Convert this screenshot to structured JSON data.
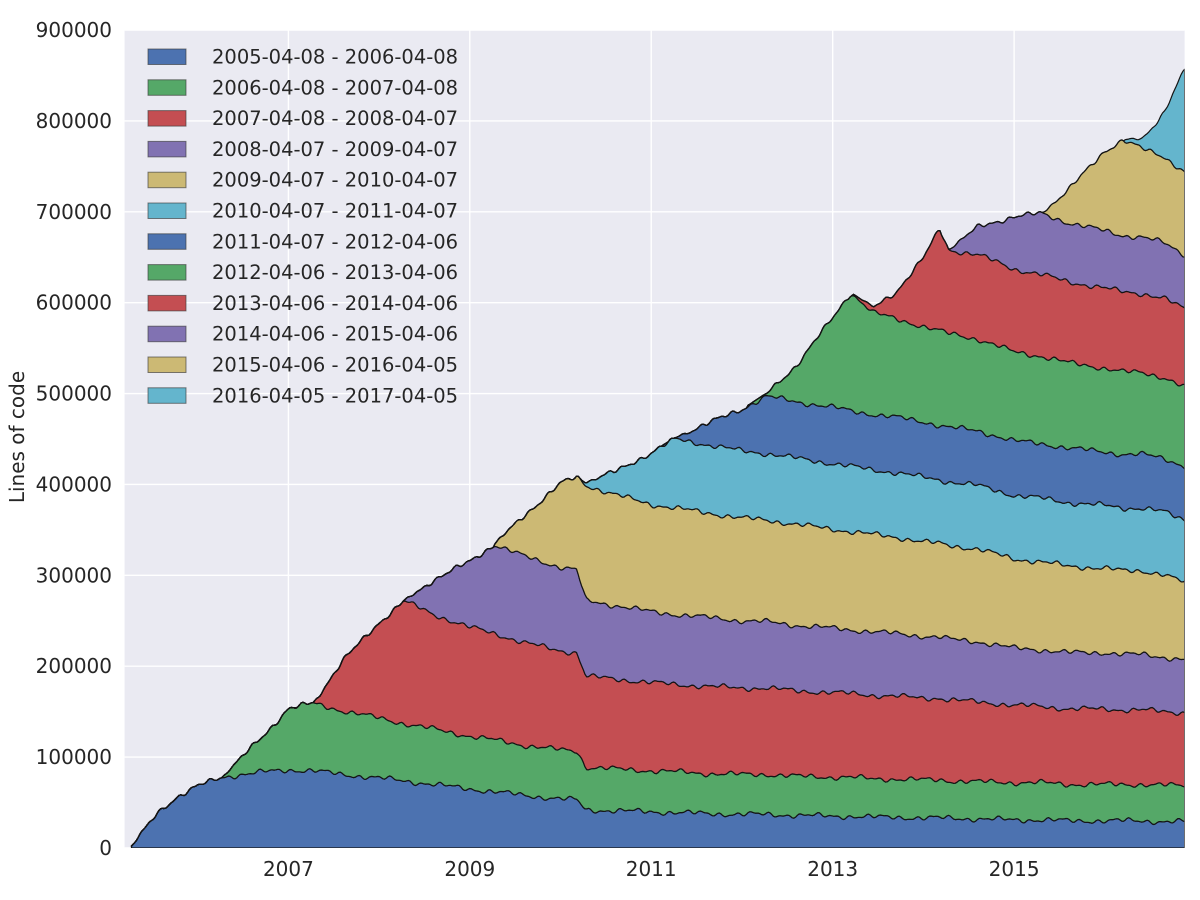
{
  "figure": {
    "background": "#ffffff",
    "plot_bg": "#eaeaf2",
    "grid_color": "#ffffff",
    "edge_color": "#141414",
    "text_color": "#262626",
    "legend_swatch_edge": "rgba(60,60,60,0.65)"
  },
  "chart_data": {
    "type": "area",
    "stacked": true,
    "title": "",
    "xlabel": "",
    "ylabel": "Lines of code",
    "grid": true,
    "legend_position": "upper left",
    "xlim": [
      2005.194,
      2016.88
    ],
    "ylim": [
      0,
      900000
    ],
    "yticks": [
      0,
      100000,
      200000,
      300000,
      400000,
      500000,
      600000,
      700000,
      800000,
      900000
    ],
    "ytick_labels": [
      "0",
      "100000",
      "200000",
      "300000",
      "400000",
      "500000",
      "600000",
      "700000",
      "800000",
      "900000"
    ],
    "xticks": [
      2007,
      2009,
      2011,
      2013,
      2015
    ],
    "xtick_labels": [
      "2007",
      "2009",
      "2011",
      "2013",
      "2015"
    ],
    "x_unit": "decimal_year",
    "x": [
      2005.27,
      2005.4,
      2005.55,
      2005.75,
      2006.0,
      2006.27,
      2006.5,
      2006.75,
      2007.0,
      2007.27,
      2007.6,
      2008.0,
      2008.27,
      2008.6,
      2009.0,
      2009.27,
      2009.6,
      2010.0,
      2010.18,
      2010.28,
      2010.6,
      2011.0,
      2011.27,
      2011.6,
      2012.0,
      2012.27,
      2012.6,
      2013.0,
      2013.2,
      2013.45,
      2013.7,
      2014.0,
      2014.18,
      2014.28,
      2014.6,
      2015.0,
      2015.3,
      2015.6,
      2016.0,
      2016.2,
      2016.42,
      2016.65,
      2016.88
    ],
    "series": [
      {
        "name": "2005-04-08 - 2006-04-08",
        "color": "#4c72b0",
        "values": [
          2000,
          18000,
          38000,
          55000,
          68000,
          78000,
          81000,
          84000,
          86000,
          85000,
          81000,
          77000,
          74000,
          70000,
          65000,
          62000,
          58000,
          54000,
          53000,
          42000,
          41000,
          40000,
          39000,
          38000,
          37000,
          37000,
          36000,
          35000,
          35000,
          34000,
          34000,
          33000,
          33000,
          33000,
          32000,
          31000,
          31000,
          30000,
          30000,
          30000,
          30000,
          29000,
          29000
        ]
      },
      {
        "name": "2006-04-08 - 2007-04-08",
        "color": "#55a868",
        "values": [
          0,
          0,
          0,
          0,
          0,
          0,
          20000,
          42000,
          68000,
          74000,
          70000,
          66000,
          63000,
          61000,
          58000,
          57000,
          55000,
          54000,
          54000,
          47000,
          46000,
          45000,
          45000,
          44000,
          44000,
          44000,
          43000,
          43000,
          43000,
          42000,
          42000,
          42000,
          42000,
          41000,
          41000,
          41000,
          41000,
          40000,
          40000,
          40000,
          40000,
          40000,
          40000
        ]
      },
      {
        "name": "2007-04-08 - 2008-04-07",
        "color": "#c44e52",
        "values": [
          0,
          0,
          0,
          0,
          0,
          0,
          0,
          0,
          0,
          0,
          55000,
          105000,
          135000,
          126000,
          120000,
          117000,
          113000,
          109000,
          108000,
          100000,
          99000,
          97000,
          96000,
          96000,
          95000,
          95000,
          94000,
          93000,
          92000,
          92000,
          91000,
          90000,
          90000,
          89000,
          88000,
          85000,
          84000,
          83000,
          83000,
          82000,
          82000,
          81000,
          80000
        ]
      },
      {
        "name": "2008-04-07 - 2009-04-07",
        "color": "#8172b2",
        "values": [
          0,
          0,
          0,
          0,
          0,
          0,
          0,
          0,
          0,
          0,
          0,
          0,
          0,
          38000,
          72000,
          98000,
          95000,
          92000,
          91000,
          83000,
          81000,
          78000,
          77000,
          76000,
          74000,
          73000,
          72000,
          71000,
          70000,
          70000,
          69000,
          68000,
          67000,
          67000,
          66000,
          63000,
          62000,
          62000,
          62000,
          61000,
          61000,
          60000,
          58000
        ]
      },
      {
        "name": "2009-04-07 - 2010-04-07",
        "color": "#ccb974",
        "values": [
          0,
          0,
          0,
          0,
          0,
          0,
          0,
          0,
          0,
          0,
          0,
          0,
          0,
          0,
          0,
          0,
          45000,
          92000,
          102000,
          127000,
          122000,
          118000,
          117000,
          115000,
          113000,
          112000,
          111000,
          109000,
          108000,
          107000,
          106000,
          104000,
          103000,
          103000,
          102000,
          98000,
          97000,
          95000,
          93000,
          92000,
          92000,
          91000,
          85000
        ]
      },
      {
        "name": "2010-04-07 - 2011-04-07",
        "color": "#64b5cd",
        "values": [
          0,
          0,
          0,
          0,
          0,
          0,
          0,
          0,
          0,
          0,
          0,
          0,
          0,
          0,
          0,
          0,
          0,
          0,
          0,
          3000,
          25000,
          57000,
          76000,
          75000,
          74000,
          73000,
          73000,
          72000,
          72000,
          71000,
          71000,
          71000,
          70000,
          70000,
          70000,
          70000,
          70000,
          70000,
          69000,
          69000,
          69000,
          69000,
          69000
        ]
      },
      {
        "name": "2011-04-07 - 2012-04-06",
        "color": "#4c72b0",
        "values": [
          0,
          0,
          0,
          0,
          0,
          0,
          0,
          0,
          0,
          0,
          0,
          0,
          0,
          0,
          0,
          0,
          0,
          0,
          0,
          0,
          0,
          0,
          2000,
          22000,
          46000,
          63000,
          62000,
          62000,
          61000,
          61000,
          61000,
          61000,
          60000,
          60000,
          60000,
          60000,
          60000,
          60000,
          59000,
          59000,
          59000,
          59000,
          59000
        ]
      },
      {
        "name": "2012-04-06 - 2013-04-06",
        "color": "#55a868",
        "values": [
          0,
          0,
          0,
          0,
          0,
          0,
          0,
          0,
          0,
          0,
          0,
          0,
          0,
          0,
          0,
          0,
          0,
          0,
          0,
          0,
          0,
          0,
          0,
          0,
          0,
          3000,
          40000,
          98000,
          130000,
          112000,
          108000,
          105000,
          104000,
          103000,
          101000,
          98000,
          96000,
          94000,
          92000,
          91000,
          90000,
          89000,
          87000
        ]
      },
      {
        "name": "2013-04-06 - 2014-04-06",
        "color": "#c44e52",
        "values": [
          0,
          0,
          0,
          0,
          0,
          0,
          0,
          0,
          0,
          0,
          0,
          0,
          0,
          0,
          0,
          0,
          0,
          0,
          0,
          0,
          0,
          0,
          0,
          0,
          0,
          0,
          0,
          0,
          0,
          6000,
          30000,
          75000,
          112000,
          92000,
          93000,
          91000,
          90000,
          89000,
          88000,
          88000,
          87000,
          87000,
          86000
        ]
      },
      {
        "name": "2014-04-06 - 2015-04-06",
        "color": "#8172b2",
        "values": [
          0,
          0,
          0,
          0,
          0,
          0,
          0,
          0,
          0,
          0,
          0,
          0,
          0,
          0,
          0,
          0,
          0,
          0,
          0,
          0,
          0,
          0,
          0,
          0,
          0,
          0,
          0,
          0,
          0,
          0,
          0,
          0,
          0,
          0,
          30000,
          58000,
          67000,
          65000,
          63000,
          62000,
          62000,
          61000,
          60000
        ]
      },
      {
        "name": "2015-04-06 - 2016-04-05",
        "color": "#ccb974",
        "values": [
          0,
          0,
          0,
          0,
          0,
          0,
          0,
          0,
          0,
          0,
          0,
          0,
          0,
          0,
          0,
          0,
          0,
          0,
          0,
          0,
          0,
          0,
          0,
          0,
          0,
          0,
          0,
          0,
          0,
          0,
          0,
          0,
          0,
          0,
          0,
          0,
          0,
          36000,
          88000,
          105000,
          97000,
          95000,
          91000
        ]
      },
      {
        "name": "2016-04-05 - 2017-04-05",
        "color": "#64b5cd",
        "values": [
          0,
          0,
          0,
          0,
          0,
          0,
          0,
          0,
          0,
          0,
          0,
          0,
          0,
          0,
          0,
          0,
          0,
          0,
          0,
          0,
          0,
          0,
          0,
          0,
          0,
          0,
          0,
          0,
          0,
          0,
          0,
          0,
          0,
          0,
          0,
          0,
          0,
          0,
          0,
          0,
          12000,
          48000,
          112000
        ]
      }
    ]
  }
}
